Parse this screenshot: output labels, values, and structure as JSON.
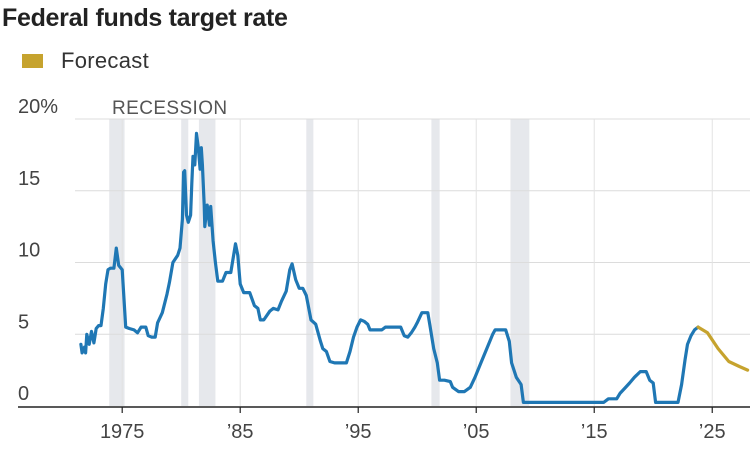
{
  "chart_data": {
    "type": "line",
    "title": "Federal funds target rate",
    "legend": [
      {
        "name": "Forecast",
        "color": "#c6a32e"
      }
    ],
    "annotation": "RECESSION",
    "xlabel": "",
    "ylabel": "",
    "xlim": [
      1971,
      2028.2
    ],
    "ylim": [
      0,
      20
    ],
    "x_ticks": [
      {
        "value": 1975,
        "label": "1975"
      },
      {
        "value": 1985,
        "label": "’85"
      },
      {
        "value": 1995,
        "label": "’95"
      },
      {
        "value": 2005,
        "label": "’05"
      },
      {
        "value": 2015,
        "label": "’15"
      },
      {
        "value": 2025,
        "label": "’25"
      }
    ],
    "y_ticks": [
      {
        "value": 0,
        "label": "0"
      },
      {
        "value": 5,
        "label": "5"
      },
      {
        "value": 10,
        "label": "10"
      },
      {
        "value": 15,
        "label": "15"
      },
      {
        "value": 20,
        "label": "20%"
      }
    ],
    "recessions": [
      [
        1973.9,
        1975.2
      ],
      [
        1980.0,
        1980.6
      ],
      [
        1981.5,
        1982.9
      ],
      [
        1990.6,
        1991.2
      ],
      [
        2001.2,
        2001.9
      ],
      [
        2007.9,
        2009.5
      ]
    ],
    "series": [
      {
        "name": "Federal funds target rate",
        "color": "#1f77b4",
        "points": [
          [
            1971.5,
            4.3
          ],
          [
            1971.6,
            3.7
          ],
          [
            1971.8,
            4.1
          ],
          [
            1971.9,
            3.7
          ],
          [
            1972.0,
            5.0
          ],
          [
            1972.2,
            4.3
          ],
          [
            1972.4,
            5.2
          ],
          [
            1972.6,
            4.4
          ],
          [
            1972.8,
            5.4
          ],
          [
            1973.0,
            5.6
          ],
          [
            1973.2,
            5.6
          ],
          [
            1973.4,
            6.8
          ],
          [
            1973.6,
            8.5
          ],
          [
            1973.8,
            9.5
          ],
          [
            1974.0,
            9.6
          ],
          [
            1974.3,
            9.6
          ],
          [
            1974.5,
            11.0
          ],
          [
            1974.7,
            9.8
          ],
          [
            1975.0,
            9.5
          ],
          [
            1975.3,
            5.5
          ],
          [
            1975.6,
            5.4
          ],
          [
            1976.0,
            5.3
          ],
          [
            1976.3,
            5.1
          ],
          [
            1976.6,
            5.5
          ],
          [
            1977.0,
            5.5
          ],
          [
            1977.2,
            4.9
          ],
          [
            1977.5,
            4.8
          ],
          [
            1977.8,
            4.8
          ],
          [
            1978.0,
            5.8
          ],
          [
            1978.4,
            6.5
          ],
          [
            1978.8,
            7.8
          ],
          [
            1979.0,
            8.6
          ],
          [
            1979.3,
            10.0
          ],
          [
            1979.7,
            10.5
          ],
          [
            1979.9,
            11.0
          ],
          [
            1980.1,
            13.0
          ],
          [
            1980.2,
            16.3
          ],
          [
            1980.3,
            16.4
          ],
          [
            1980.45,
            13.3
          ],
          [
            1980.6,
            12.8
          ],
          [
            1980.8,
            13.3
          ],
          [
            1980.9,
            15.5
          ],
          [
            1981.0,
            17.4
          ],
          [
            1981.15,
            16.8
          ],
          [
            1981.3,
            19.0
          ],
          [
            1981.45,
            18.0
          ],
          [
            1981.6,
            16.5
          ],
          [
            1981.7,
            18.0
          ],
          [
            1981.8,
            16.8
          ],
          [
            1981.95,
            14.0
          ],
          [
            1982.0,
            12.5
          ],
          [
            1982.2,
            14.0
          ],
          [
            1982.4,
            12.6
          ],
          [
            1982.5,
            13.9
          ],
          [
            1982.7,
            11.5
          ],
          [
            1982.9,
            10.0
          ],
          [
            1983.1,
            8.7
          ],
          [
            1983.5,
            8.7
          ],
          [
            1983.8,
            9.3
          ],
          [
            1984.2,
            9.3
          ],
          [
            1984.6,
            11.3
          ],
          [
            1984.8,
            10.5
          ],
          [
            1985.0,
            8.5
          ],
          [
            1985.3,
            7.9
          ],
          [
            1985.8,
            7.9
          ],
          [
            1986.2,
            7.0
          ],
          [
            1986.5,
            6.8
          ],
          [
            1986.7,
            6.0
          ],
          [
            1987.0,
            6.0
          ],
          [
            1987.5,
            6.6
          ],
          [
            1987.8,
            6.8
          ],
          [
            1988.2,
            6.7
          ],
          [
            1988.5,
            7.3
          ],
          [
            1988.9,
            8.0
          ],
          [
            1989.2,
            9.5
          ],
          [
            1989.4,
            9.9
          ],
          [
            1989.7,
            8.8
          ],
          [
            1990.0,
            8.2
          ],
          [
            1990.3,
            8.2
          ],
          [
            1990.6,
            7.7
          ],
          [
            1991.0,
            6.0
          ],
          [
            1991.4,
            5.7
          ],
          [
            1991.8,
            4.5
          ],
          [
            1992.0,
            4.0
          ],
          [
            1992.3,
            3.8
          ],
          [
            1992.6,
            3.1
          ],
          [
            1993.0,
            3.0
          ],
          [
            1993.5,
            3.0
          ],
          [
            1994.0,
            3.0
          ],
          [
            1994.3,
            3.8
          ],
          [
            1994.6,
            4.8
          ],
          [
            1994.9,
            5.5
          ],
          [
            1995.2,
            6.0
          ],
          [
            1995.5,
            5.9
          ],
          [
            1995.8,
            5.7
          ],
          [
            1996.0,
            5.3
          ],
          [
            1996.5,
            5.3
          ],
          [
            1997.0,
            5.3
          ],
          [
            1997.3,
            5.5
          ],
          [
            1998.0,
            5.5
          ],
          [
            1998.6,
            5.5
          ],
          [
            1998.9,
            4.9
          ],
          [
            1999.2,
            4.8
          ],
          [
            1999.5,
            5.1
          ],
          [
            1999.8,
            5.5
          ],
          [
            2000.0,
            5.8
          ],
          [
            2000.4,
            6.5
          ],
          [
            2000.9,
            6.5
          ],
          [
            2001.1,
            5.5
          ],
          [
            2001.4,
            4.0
          ],
          [
            2001.7,
            3.0
          ],
          [
            2001.9,
            1.8
          ],
          [
            2002.3,
            1.8
          ],
          [
            2002.8,
            1.7
          ],
          [
            2003.0,
            1.3
          ],
          [
            2003.5,
            1.0
          ],
          [
            2004.0,
            1.0
          ],
          [
            2004.5,
            1.3
          ],
          [
            2004.9,
            2.0
          ],
          [
            2005.4,
            3.0
          ],
          [
            2005.9,
            4.0
          ],
          [
            2006.4,
            5.0
          ],
          [
            2006.6,
            5.3
          ],
          [
            2007.5,
            5.3
          ],
          [
            2007.8,
            4.5
          ],
          [
            2008.0,
            3.0
          ],
          [
            2008.4,
            2.0
          ],
          [
            2008.8,
            1.5
          ],
          [
            2009.0,
            0.25
          ],
          [
            2015.8,
            0.25
          ],
          [
            2016.2,
            0.5
          ],
          [
            2016.9,
            0.5
          ],
          [
            2017.2,
            0.9
          ],
          [
            2017.6,
            1.25
          ],
          [
            2018.0,
            1.6
          ],
          [
            2018.4,
            2.0
          ],
          [
            2018.9,
            2.4
          ],
          [
            2019.4,
            2.4
          ],
          [
            2019.7,
            1.8
          ],
          [
            2020.0,
            1.6
          ],
          [
            2020.2,
            0.25
          ],
          [
            2022.1,
            0.25
          ],
          [
            2022.4,
            1.5
          ],
          [
            2022.7,
            3.25
          ],
          [
            2022.9,
            4.3
          ],
          [
            2023.2,
            4.9
          ],
          [
            2023.5,
            5.3
          ],
          [
            2023.8,
            5.5
          ]
        ]
      },
      {
        "name": "Forecast",
        "color": "#c6a32e",
        "points": [
          [
            2023.8,
            5.5
          ],
          [
            2024.6,
            5.1
          ],
          [
            2025.5,
            4.0
          ],
          [
            2026.4,
            3.1
          ],
          [
            2027.3,
            2.75
          ],
          [
            2028.0,
            2.5
          ]
        ]
      }
    ]
  }
}
